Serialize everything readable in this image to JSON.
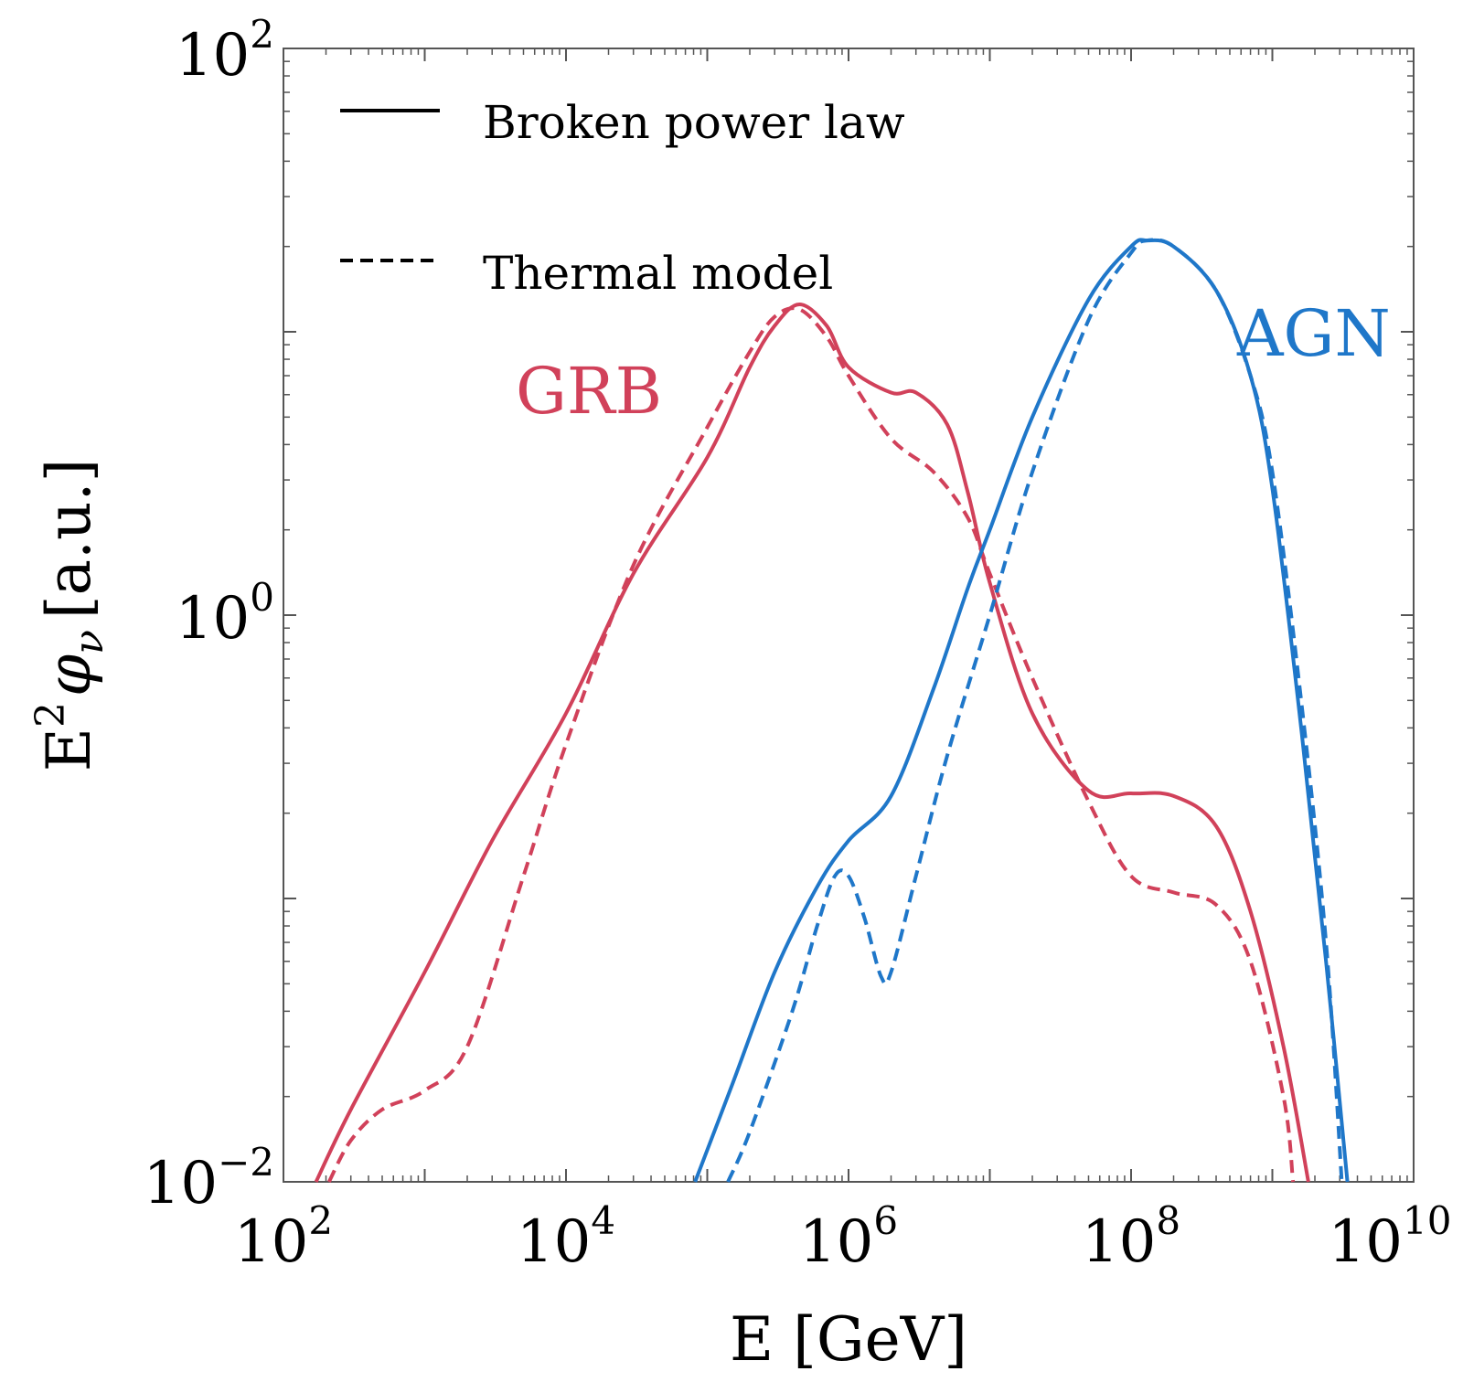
{
  "chart_data": {
    "type": "line",
    "scale": {
      "x": "log",
      "y": "log"
    },
    "xlabel": "E [GeV]",
    "ylabel_base": "E",
    "ylabel_sup": "2",
    "ylabel_symbol": "φ",
    "ylabel_sub": "ν",
    "ylabel_units": "[a.u.]",
    "xlim": [
      100.0,
      10000000000.0
    ],
    "ylim": [
      0.01,
      100.0
    ],
    "x_ticks": [
      {
        "base": "10",
        "exp": "2",
        "value": 100.0
      },
      {
        "base": "10",
        "exp": "4",
        "value": 10000.0
      },
      {
        "base": "10",
        "exp": "6",
        "value": 1000000.0
      },
      {
        "base": "10",
        "exp": "8",
        "value": 100000000.0
      },
      {
        "base": "10",
        "exp": "10",
        "value": 10000000000.0
      }
    ],
    "y_ticks": [
      {
        "base": "10",
        "exp": "−2",
        "value": 0.01
      },
      {
        "base": "10",
        "exp": "0",
        "value": 1
      },
      {
        "base": "10",
        "exp": "2",
        "value": 100.0
      }
    ],
    "legend": [
      {
        "label": "Broken power law",
        "style": "solid"
      },
      {
        "label": "Thermal model",
        "style": "dashed"
      }
    ],
    "legend_position": "top-left",
    "colors": {
      "GRB": "#d1415a",
      "AGN": "#1f77c9",
      "frame": "#555555"
    },
    "series": [
      {
        "name": "GRB",
        "label": "GRB",
        "model": "Broken power law",
        "style": "solid",
        "color": "#d1415a",
        "x": [
          170.0,
          300.0,
          1000.0,
          3000.0,
          10000.0,
          30000.0,
          100000.0,
          200000.0,
          300000.0,
          450000.0,
          700000.0,
          1000000.0,
          2000000.0,
          3000000.0,
          5000000.0,
          7000000.0,
          10000000.0,
          20000000.0,
          50000000.0,
          100000000.0,
          200000000.0,
          400000000.0,
          700000000.0,
          1200000000.0,
          1800000000.0
        ],
        "y": [
          0.01,
          0.018,
          0.055,
          0.16,
          0.45,
          1.4,
          3.6,
          7.5,
          10.5,
          12.5,
          10.5,
          7.5,
          6.1,
          6.1,
          4.7,
          2.7,
          1.3,
          0.45,
          0.24,
          0.235,
          0.23,
          0.18,
          0.09,
          0.03,
          0.01
        ]
      },
      {
        "name": "GRB",
        "label": "GRB",
        "model": "Thermal model",
        "style": "dashed",
        "color": "#d1415a",
        "x": [
          210.0,
          300.0,
          500.0,
          1000.0,
          2000.0,
          5000.0,
          10000.0,
          30000.0,
          100000.0,
          200000.0,
          300000.0,
          450000.0,
          700000.0,
          1000000.0,
          2000000.0,
          4000000.0,
          7000000.0,
          10000000.0,
          20000000.0,
          50000000.0,
          100000000.0,
          200000000.0,
          400000000.0,
          700000000.0,
          1200000000.0,
          1400000000.0
        ],
        "y": [
          0.01,
          0.014,
          0.018,
          0.021,
          0.03,
          0.12,
          0.35,
          1.5,
          4.6,
          8.5,
          11.3,
          12.0,
          9.6,
          7.0,
          4.2,
          3.2,
          2.2,
          1.4,
          0.6,
          0.22,
          0.12,
          0.105,
          0.095,
          0.06,
          0.02,
          0.01
        ]
      },
      {
        "name": "AGN",
        "label": "AGN",
        "model": "Broken power law",
        "style": "solid",
        "color": "#1f77c9",
        "x": [
          82000.0,
          150000.0,
          300000.0,
          600000.0,
          1000000.0,
          2000000.0,
          4000000.0,
          7000000.0,
          10000000.0,
          20000000.0,
          50000000.0,
          100000000.0,
          130000000.0,
          200000000.0,
          400000000.0,
          700000000.0,
          1000000000.0,
          1600000000.0,
          2400000000.0,
          3400000000.0
        ],
        "y": [
          0.01,
          0.022,
          0.055,
          0.11,
          0.16,
          0.23,
          0.55,
          1.25,
          2.0,
          5.0,
          13.0,
          20.0,
          21.0,
          20.0,
          14.0,
          7.0,
          2.8,
          0.4,
          0.06,
          0.01
        ]
      },
      {
        "name": "AGN",
        "label": "AGN",
        "model": "Thermal model",
        "style": "dashed",
        "color": "#1f77c9",
        "x": [
          140000.0,
          200000.0,
          400000.0,
          600000.0,
          800000.0,
          1000000.0,
          1300000.0,
          1700000.0,
          2000000.0,
          3000000.0,
          5000000.0,
          10000000.0,
          20000000.0,
          50000000.0,
          100000000.0,
          130000000.0,
          200000000.0,
          400000000.0,
          700000000.0,
          1000000000.0,
          1600000000.0,
          2400000000.0,
          3100000000.0
        ],
        "y": [
          0.01,
          0.015,
          0.04,
          0.08,
          0.12,
          0.12,
          0.085,
          0.053,
          0.055,
          0.12,
          0.32,
          1.0,
          3.2,
          11.0,
          19.0,
          21.0,
          20.0,
          14.0,
          7.0,
          3.2,
          0.5,
          0.07,
          0.01
        ]
      }
    ]
  }
}
